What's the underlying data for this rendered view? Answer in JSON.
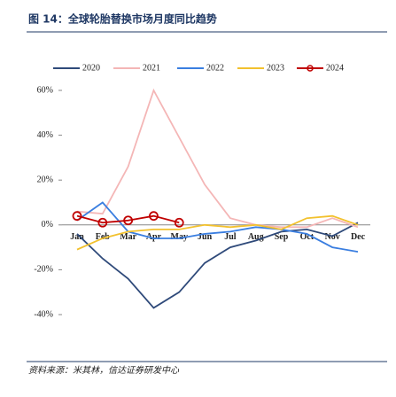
{
  "header": {
    "title": "图 14：全球轮胎替换市场月度同比趋势"
  },
  "chart_data": {
    "type": "line",
    "categories": [
      "Jan",
      "Feb",
      "Mar",
      "Apr",
      "May",
      "Jun",
      "Jul",
      "Aug",
      "Sep",
      "Oct",
      "Nov",
      "Dec"
    ],
    "series": [
      {
        "name": "2020",
        "color": "#2f4a7a",
        "values": [
          -4,
          -15,
          -24,
          -37,
          -30,
          -17,
          -10,
          -7,
          -3,
          -2,
          -5,
          1
        ]
      },
      {
        "name": "2021",
        "color": "#f4b6b6",
        "values": [
          6,
          5,
          26,
          60,
          39,
          18,
          3,
          0,
          -1,
          -1,
          3,
          -1
        ]
      },
      {
        "name": "2022",
        "color": "#3a7ee0",
        "values": [
          2,
          10,
          -3,
          -6,
          -6,
          -4,
          -3,
          -1,
          -2,
          -4,
          -10,
          -12
        ]
      },
      {
        "name": "2023",
        "color": "#f2c12e",
        "values": [
          -11,
          -6,
          -3,
          -2,
          -2,
          0,
          -1,
          0,
          -2,
          3,
          4,
          0
        ]
      },
      {
        "name": "2024",
        "color": "#c00000",
        "values": [
          4,
          1,
          2,
          4,
          1,
          null,
          null,
          null,
          null,
          null,
          null,
          null
        ],
        "markers": true
      }
    ],
    "ylim": [
      -40,
      60
    ],
    "yticks": [
      {
        "value": -40,
        "label": "-40%"
      },
      {
        "value": -20,
        "label": "-20%"
      },
      {
        "value": 0,
        "label": "0%"
      },
      {
        "value": 20,
        "label": "20%"
      },
      {
        "value": 40,
        "label": "40%"
      },
      {
        "value": 60,
        "label": "60%"
      }
    ],
    "legend": "top"
  },
  "footer": {
    "source": "资料来源：米其林，信达证券研发中心"
  }
}
